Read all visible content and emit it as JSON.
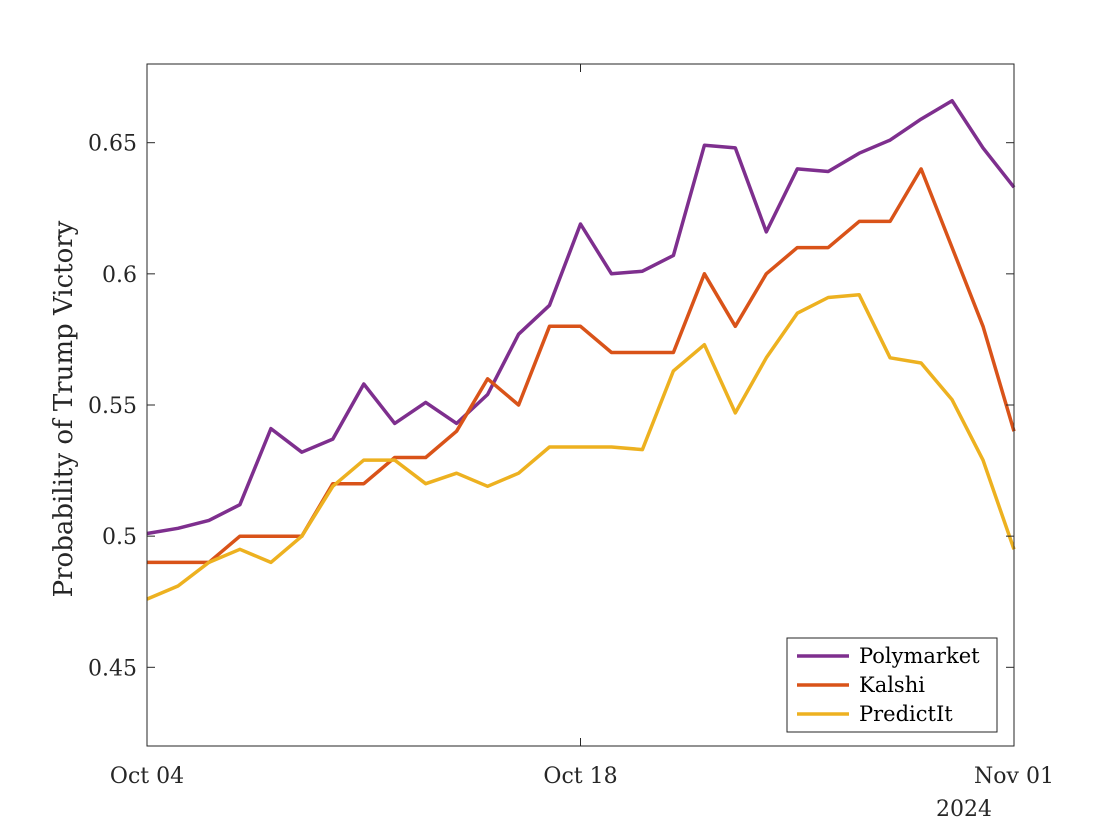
{
  "chart_data": {
    "type": "line",
    "title": "",
    "xlabel": "",
    "ylabel": "Probability of Trump Victory",
    "x": [
      "2024-10-04",
      "2024-10-05",
      "2024-10-06",
      "2024-10-07",
      "2024-10-08",
      "2024-10-09",
      "2024-10-10",
      "2024-10-11",
      "2024-10-12",
      "2024-10-13",
      "2024-10-14",
      "2024-10-15",
      "2024-10-16",
      "2024-10-17",
      "2024-10-18",
      "2024-10-19",
      "2024-10-20",
      "2024-10-21",
      "2024-10-22",
      "2024-10-23",
      "2024-10-24",
      "2024-10-25",
      "2024-10-26",
      "2024-10-27",
      "2024-10-28",
      "2024-10-29",
      "2024-10-30",
      "2024-10-31",
      "2024-11-01"
    ],
    "x_ticks": [
      {
        "date": "2024-10-04",
        "label": "Oct 04"
      },
      {
        "date": "2024-10-18",
        "label": "Oct 18"
      },
      {
        "date": "2024-11-01",
        "label": "Nov 01"
      }
    ],
    "x_year_label": "2024",
    "xlim": [
      "2024-10-04",
      "2024-11-01"
    ],
    "ylim": [
      0.42,
      0.68
    ],
    "y_ticks": [
      0.45,
      0.5,
      0.55,
      0.6,
      0.65
    ],
    "y_tick_labels": [
      "0.45",
      "0.5",
      "0.55",
      "0.6",
      "0.65"
    ],
    "grid": false,
    "legend_position": "bottom-right",
    "series": [
      {
        "name": "Polymarket",
        "color": "#7E2F8E",
        "values": [
          0.501,
          0.503,
          0.506,
          0.512,
          0.541,
          0.532,
          0.537,
          0.558,
          0.543,
          0.551,
          0.543,
          0.554,
          0.577,
          0.588,
          0.619,
          0.6,
          0.601,
          0.607,
          0.649,
          0.648,
          0.616,
          0.64,
          0.639,
          0.646,
          0.651,
          0.659,
          0.666,
          0.648,
          0.633
        ]
      },
      {
        "name": "Kalshi",
        "color": "#D95319",
        "values": [
          0.49,
          0.49,
          0.49,
          0.5,
          0.5,
          0.5,
          0.52,
          0.52,
          0.53,
          0.53,
          0.54,
          0.56,
          0.55,
          0.58,
          0.58,
          0.57,
          0.57,
          0.57,
          0.6,
          0.58,
          0.6,
          0.61,
          0.61,
          0.62,
          0.62,
          0.64,
          0.61,
          0.58,
          0.54
        ]
      },
      {
        "name": "PredictIt",
        "color": "#EDB120",
        "values": [
          0.476,
          0.481,
          0.49,
          0.495,
          0.49,
          0.5,
          0.519,
          0.529,
          0.529,
          0.52,
          0.524,
          0.519,
          0.524,
          0.534,
          0.534,
          0.534,
          0.533,
          0.563,
          0.573,
          0.547,
          0.568,
          0.585,
          0.591,
          0.592,
          0.568,
          0.566,
          0.552,
          0.529,
          0.495
        ]
      }
    ]
  }
}
